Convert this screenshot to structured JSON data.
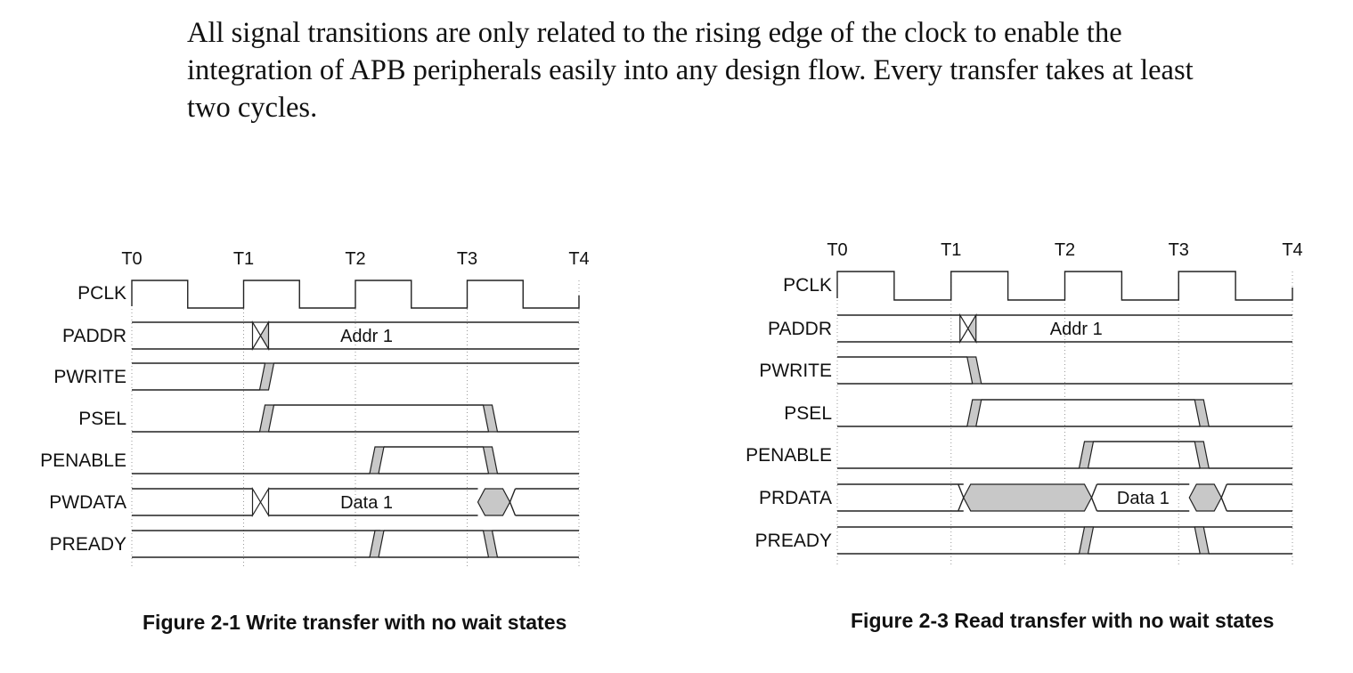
{
  "paragraph": {
    "line1": "All signal transitions are only related to the rising edge of the clock to enable the",
    "line2": "integration of APB peripherals easily into any design flow. Every transfer takes at least",
    "line3": "two cycles."
  },
  "figures": [
    {
      "caption": "Figure 2-1 Write transfer with no wait states",
      "time_labels": [
        "T0",
        "T1",
        "T2",
        "T3",
        "T4"
      ],
      "signals": [
        "PCLK",
        "PADDR",
        "PWRITE",
        "PSEL",
        "PENABLE",
        "PWDATA",
        "PREADY"
      ],
      "addr_label": "Addr 1",
      "data_label": "Data 1"
    },
    {
      "caption": "Figure 2-3 Read transfer with no wait states",
      "time_labels": [
        "T0",
        "T1",
        "T2",
        "T3",
        "T4"
      ],
      "signals": [
        "PCLK",
        "PADDR",
        "PWRITE",
        "PSEL",
        "PENABLE",
        "PRDATA",
        "PREADY"
      ],
      "addr_label": "Addr 1",
      "data_label": "Data 1"
    }
  ],
  "colors": {
    "shade": "#c8c8c8",
    "line": "#222222"
  }
}
